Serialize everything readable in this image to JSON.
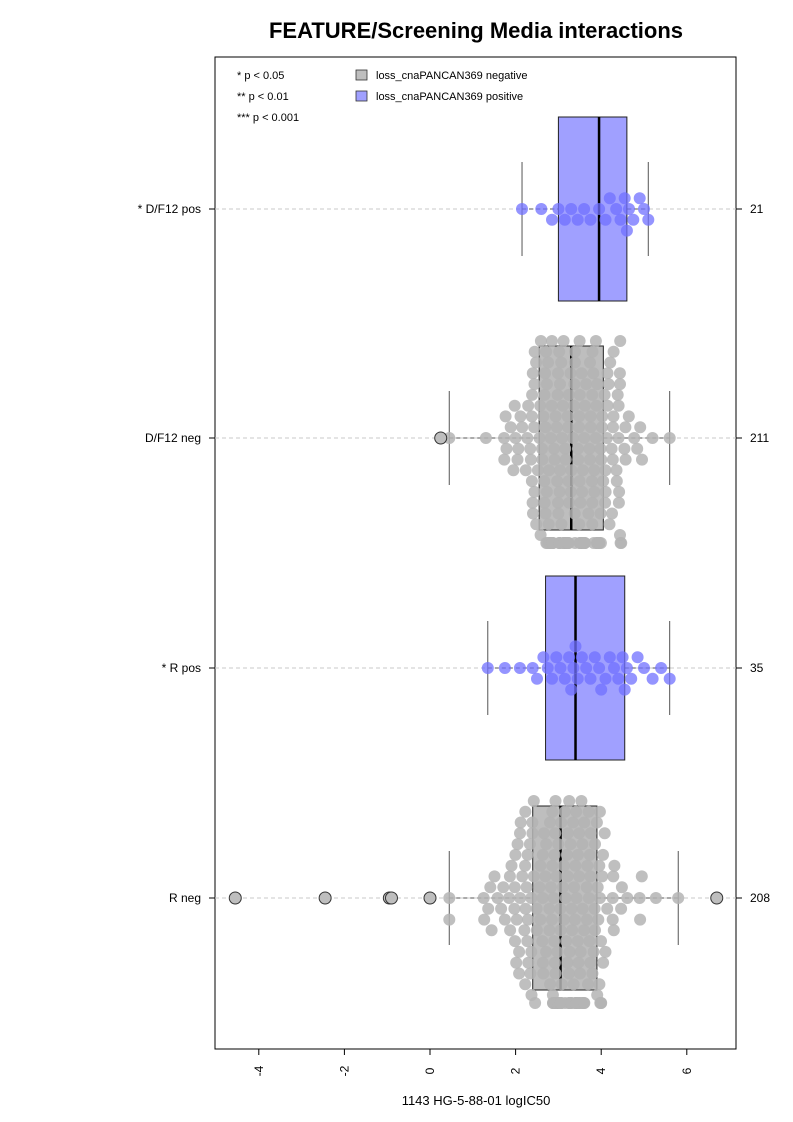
{
  "chart_data": {
    "type": "box",
    "title": "FEATURE/Screening Media interactions",
    "xlabel": "1143 HG-5-88-01 logIC50",
    "xlim": [
      -5,
      7.2
    ],
    "xticks": [
      -4,
      -2,
      0,
      2,
      4,
      6
    ],
    "orientation": "horizontal",
    "grid_lines": "dashed horizontal at each group",
    "significance_legend": [
      "* p < 0.05",
      "** p < 0.01",
      "*** p < 0.001"
    ],
    "legend": [
      {
        "label": "loss_cnaPANCAN369 negative",
        "color": "#bebebe"
      },
      {
        "label": "loss_cnaPANCAN369 positive",
        "color": "#a0a0ff"
      }
    ],
    "groups": [
      {
        "label": "* D/F12 pos",
        "n": "21",
        "color": "#a0a0ff",
        "point_color": "#7070ff",
        "whisker_low": 2.15,
        "q1": 3.0,
        "median": 3.95,
        "q3": 4.6,
        "whisker_high": 5.1,
        "points": [
          2.15,
          2.6,
          2.85,
          3.0,
          3.15,
          3.3,
          3.45,
          3.6,
          3.75,
          3.95,
          4.1,
          4.2,
          4.35,
          4.45,
          4.55,
          4.6,
          4.65,
          4.75,
          4.9,
          5.0,
          5.1
        ],
        "outliers": []
      },
      {
        "label": "D/F12 neg",
        "n": "211",
        "color": "#bebebe",
        "point_color": "#b4b4b4",
        "whisker_low": 0.45,
        "q1": 2.55,
        "median": 3.3,
        "q3": 4.05,
        "whisker_high": 5.6,
        "points_summary": {
          "min": 0.45,
          "max": 5.6,
          "count": 210,
          "center": 3.3,
          "spread": 0.95
        },
        "outliers": [
          0.25
        ]
      },
      {
        "label": "* R pos",
        "n": "35",
        "color": "#a0a0ff",
        "point_color": "#7070ff",
        "whisker_low": 1.35,
        "q1": 2.7,
        "median": 3.4,
        "q3": 4.55,
        "whisker_high": 5.6,
        "points": [
          1.35,
          1.75,
          2.1,
          2.4,
          2.5,
          2.65,
          2.75,
          2.85,
          2.95,
          3.05,
          3.15,
          3.25,
          3.3,
          3.35,
          3.4,
          3.45,
          3.55,
          3.65,
          3.75,
          3.85,
          3.95,
          4.0,
          4.1,
          4.2,
          4.3,
          4.4,
          4.5,
          4.55,
          4.6,
          4.7,
          4.85,
          5.0,
          5.2,
          5.4,
          5.6
        ],
        "outliers": []
      },
      {
        "label": "R neg",
        "n": "208",
        "color": "#bebebe",
        "point_color": "#b4b4b4",
        "whisker_low": 0.45,
        "q1": 2.4,
        "median": 3.05,
        "q3": 3.9,
        "whisker_high": 5.8,
        "points_summary": {
          "min": 0.45,
          "max": 5.8,
          "count": 202,
          "center": 3.1,
          "spread": 1.0
        },
        "outliers": [
          -4.55,
          -2.45,
          -0.95,
          -0.9,
          0.0,
          6.7
        ]
      }
    ]
  }
}
